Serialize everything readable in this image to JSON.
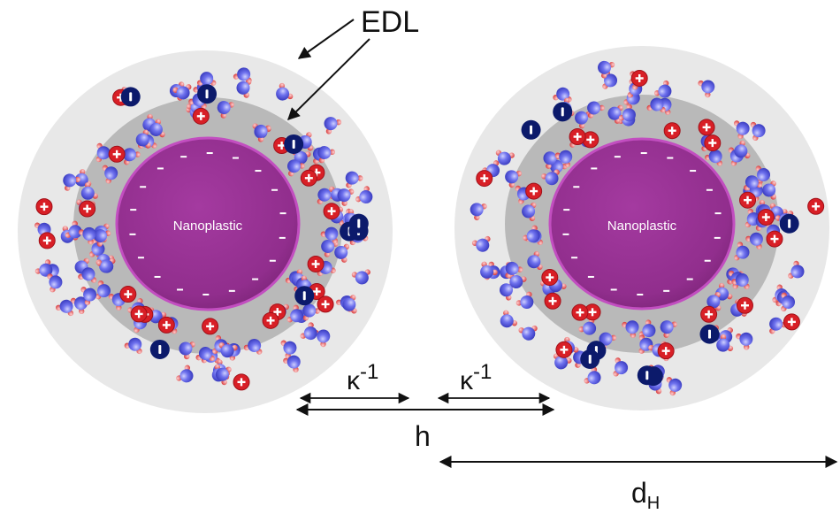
{
  "labels": {
    "edl": "EDL",
    "kappa_left": "κ",
    "kappa_left_exp": "-1",
    "kappa_right": "κ",
    "kappa_right_exp": "-1",
    "h": "h",
    "dh": "d",
    "dh_sub": "H"
  },
  "particles": [
    {
      "core_label": "Nanoplastic"
    },
    {
      "core_label": "Nanoplastic"
    }
  ],
  "colors": {
    "outer_layer": "#e8e8e8",
    "inner_layer": "#b9b9b9",
    "core": "#93308f",
    "core_edge": "#c24ec0",
    "cation": "#d81f26",
    "anion": "#0c1a6b",
    "water_oxygen": "#5a5ee0",
    "water_hydrogen": "#e04848"
  }
}
